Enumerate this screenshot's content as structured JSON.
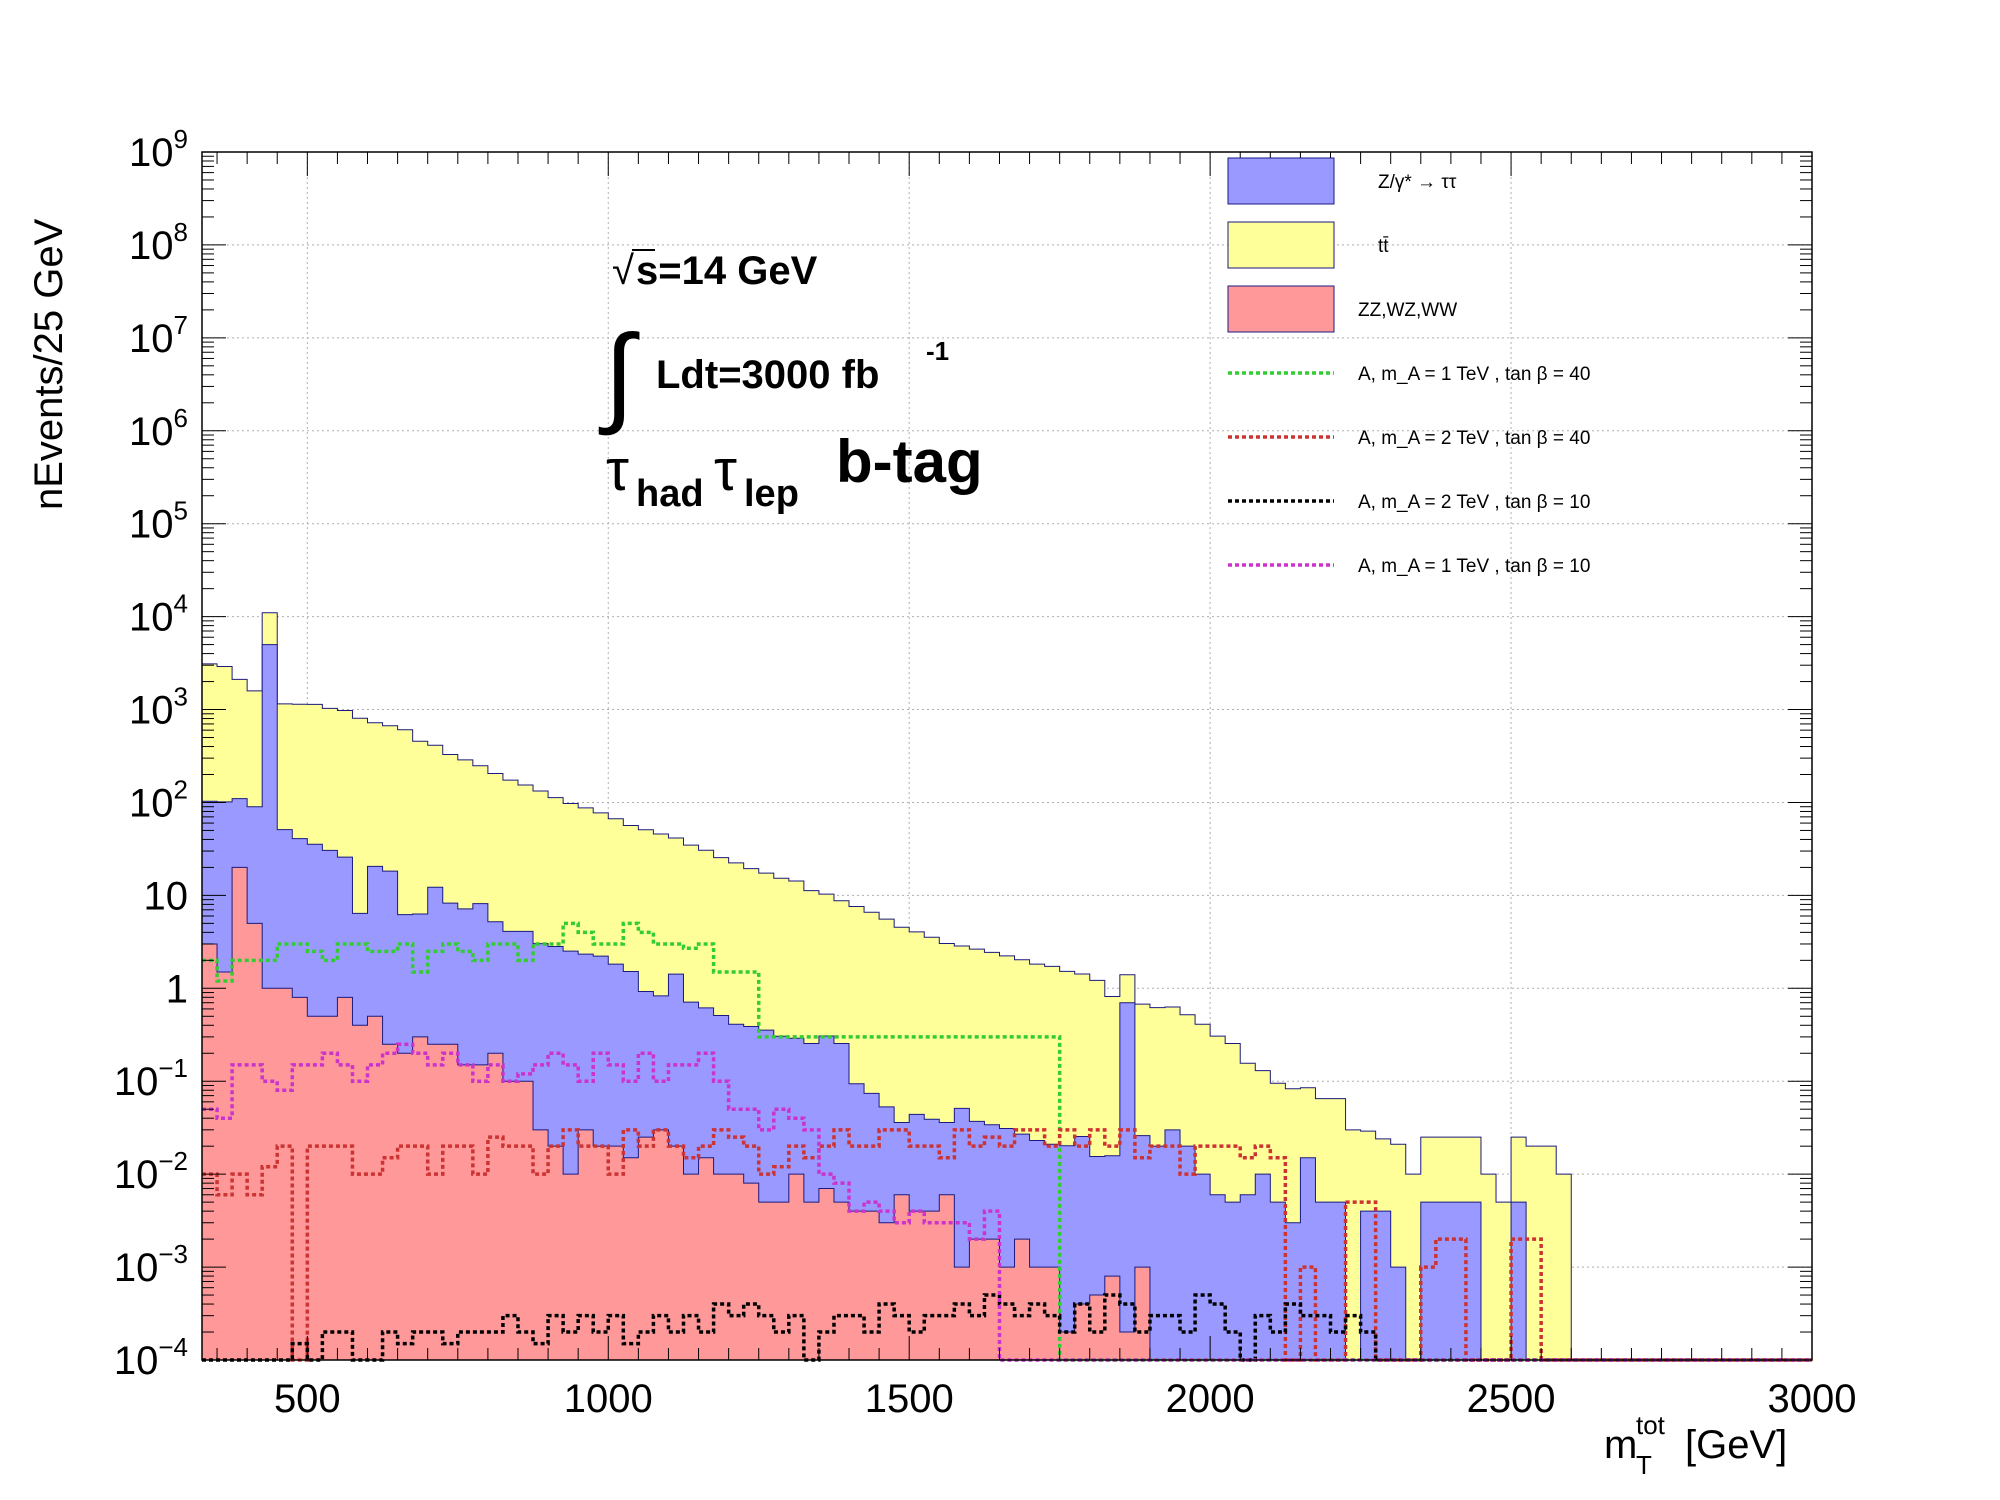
{
  "chart_data": {
    "type": "histogram",
    "ylog": true,
    "xlim": [
      325,
      3000
    ],
    "ylim": [
      0.0001,
      1000000000
    ],
    "bin_width": 25,
    "grid": true,
    "legend_position": "top-right",
    "xlabel": "m_T^tot [GeV]",
    "ylabel": "nEvents/25 GeV",
    "x_ticks": [
      "500",
      "1000",
      "1500",
      "2000",
      "2500",
      "3000"
    ],
    "y_ticks": [
      {
        "text": "10",
        "exp": "9",
        "v": 1000000000.0
      },
      {
        "text": "10",
        "exp": "8",
        "v": 100000000.0
      },
      {
        "text": "10",
        "exp": "7",
        "v": 10000000.0
      },
      {
        "text": "10",
        "exp": "6",
        "v": 1000000.0
      },
      {
        "text": "10",
        "exp": "5",
        "v": 100000.0
      },
      {
        "text": "10",
        "exp": "4",
        "v": 10000.0
      },
      {
        "text": "10",
        "exp": "3",
        "v": 1000.0
      },
      {
        "text": "10",
        "exp": "2",
        "v": 100.0
      },
      {
        "text": "10",
        "exp": "",
        "v": 10
      },
      {
        "text": "1",
        "exp": "",
        "v": 1
      },
      {
        "text": "10",
        "exp": "−1",
        "v": 0.1
      },
      {
        "text": "10",
        "exp": "−2",
        "v": 0.01
      },
      {
        "text": "10",
        "exp": "−3",
        "v": 0.001
      },
      {
        "text": "10",
        "exp": "−4",
        "v": 0.0001
      }
    ],
    "annotations": {
      "energy": "s=14 GeV",
      "lumi": "Ldt=3000 fb",
      "lumi_exp": "-1",
      "tau1": "τ",
      "tau1_sub": "had",
      "tau2": "τ",
      "tau2_sub": "lep",
      "category": "b-tag"
    },
    "stack_series": [
      {
        "name": "ZZ,WZ,WW",
        "color": "#ff9999",
        "x_start": 325,
        "values": [
          3,
          1.5,
          20,
          5,
          1,
          1,
          0.8,
          0.5,
          0.5,
          0.8,
          0.4,
          0.5,
          0.25,
          0.2,
          0.3,
          0.25,
          0.25,
          0.15,
          0.15,
          0.2,
          0.1,
          0.1,
          0.03,
          0.02,
          0.01,
          0.03,
          0.02,
          0.02,
          0.015,
          0.025,
          0.03,
          0.02,
          0.01,
          0.015,
          0.01,
          0.01,
          0.008,
          0.005,
          0.005,
          0.01,
          0.005,
          0.007,
          0.005,
          0.004,
          0.004,
          0.003,
          0.006,
          0.004,
          0.004,
          0.006,
          0.001,
          0.002,
          0.002,
          0.001,
          0.002,
          0.001,
          0.001,
          0.0002,
          0.0004,
          0.0005,
          0.0008,
          0.0002,
          0.001,
          0.0001,
          0.0001,
          0.0001,
          0.0001,
          0.0001,
          0.0001,
          0.0001,
          0.0001,
          0.0001,
          0.0001,
          0.0001,
          0.0001,
          0.0001,
          0.0001,
          0.0001,
          0.0001,
          0.0001,
          0.0001,
          0.0001,
          0.0001,
          0.0001,
          0.0001,
          0.0001,
          0.0001,
          0.0001,
          0.0001,
          0.0001,
          0.0001,
          0.0001,
          0.0001,
          0.0001,
          0.0001,
          0.0001,
          0.0001,
          0.0001,
          0.0001,
          0.0001,
          0.0001,
          0.0001,
          0.0001,
          0.0001,
          0.0001,
          0.0001,
          0.0001
        ]
      },
      {
        "name": "Z/γ* → ττ",
        "color": "#9999ff",
        "x_start": 325,
        "values": [
          100,
          100,
          90,
          85,
          5000,
          50,
          40,
          35,
          30,
          25,
          6,
          20,
          18,
          6,
          6,
          12,
          8,
          7,
          8,
          5,
          4,
          4,
          3,
          2.8,
          2.5,
          2.3,
          2.2,
          1.8,
          1.5,
          0.9,
          0.8,
          1.4,
          0.7,
          0.6,
          0.5,
          0.4,
          0.38,
          0.35,
          0.3,
          0.28,
          0.25,
          0.3,
          0.25,
          0.09,
          0.07,
          0.05,
          0.03,
          0.04,
          0.035,
          0.03,
          0.05,
          0.035,
          0.032,
          0.03,
          0.025,
          0.022,
          0.02,
          0.02,
          0.025,
          0.015,
          0.015,
          0.7,
          0.025,
          0.02,
          0.03,
          0.02,
          0.01,
          0.006,
          0.005,
          0.006,
          0.01,
          0.005,
          0.003,
          0.015,
          0.005,
          0.005,
          0.0001,
          0.004,
          0.004,
          0.001,
          0.0001,
          0.005,
          0.005,
          0.005,
          0.005,
          0.0001,
          0.0001,
          0.005,
          0.0001,
          0.0001,
          0.0001,
          0.0001,
          0.0001,
          0.0001,
          0.0001,
          0.0001,
          0.0001,
          0.0001,
          0.0001,
          0.0001,
          0.0001,
          0.0001,
          0.0001,
          0.0001,
          0.0001,
          0.0001,
          0.0001
        ]
      },
      {
        "name": "tt̄",
        "color": "#ffff99",
        "x_start": 325,
        "values": [
          3000,
          2800,
          2000,
          1500,
          6000,
          1100,
          1100,
          1100,
          1000,
          950,
          800,
          700,
          650,
          600,
          450,
          400,
          320,
          280,
          240,
          200,
          170,
          150,
          130,
          110,
          95,
          85,
          75,
          65,
          55,
          50,
          45,
          40,
          34,
          30,
          25,
          22,
          19,
          17,
          15,
          14,
          11,
          10,
          8.5,
          7.5,
          6.5,
          5.5,
          4.5,
          4,
          3.5,
          3,
          2.8,
          2.6,
          2.4,
          2.2,
          2,
          1.8,
          1.7,
          1.5,
          1.4,
          1.2,
          0.8,
          0.7,
          0.65,
          0.6,
          0.6,
          0.5,
          0.4,
          0.3,
          0.25,
          0.15,
          0.12,
          0.09,
          0.08,
          0.07,
          0.06,
          0.06,
          0.03,
          0.025,
          0.02,
          0.02,
          0.01,
          0.02,
          0.02,
          0.02,
          0.02,
          0.01,
          0.005,
          0.02,
          0.02,
          0.02,
          0.01,
          0.0001,
          0.0001,
          0.0001,
          0.0001,
          0.0001,
          0.0001,
          0.0001,
          0.0001,
          0.0001,
          0.0001,
          0.0001,
          0.0001,
          0.0001,
          0.0001,
          0.0001,
          0.0001
        ]
      }
    ],
    "overlay_series": [
      {
        "name": "A,   m_A = 1   TeV   ,   tan β = 40",
        "color": "#33cc33",
        "x_start": 325,
        "values": [
          2,
          1.2,
          2,
          2,
          2,
          3,
          3,
          2.5,
          2,
          3,
          3,
          2.5,
          2.5,
          3,
          1.5,
          2.5,
          3,
          2.5,
          2,
          3,
          3,
          2,
          3,
          3,
          5,
          4,
          3,
          3,
          5,
          4,
          3,
          3,
          2.7,
          3,
          1.5,
          1.5,
          1.5,
          0.3,
          0.3,
          0.3,
          0.3,
          0.3,
          0.3,
          0.3,
          0.3,
          0.3,
          0.3,
          0.3,
          0.3,
          0.3,
          0.3,
          0.3,
          0.3,
          0.3,
          0.3,
          0.3,
          0.3,
          0.0001,
          0.0001,
          0.0001,
          0.0001,
          0.0001,
          0.0001,
          0.0001,
          0.0001,
          0.0001,
          0.0001,
          0.0001,
          0.0001,
          0.0001,
          0.0001,
          0.0001,
          0.0001,
          0.0001,
          0.0001,
          0.0001,
          0.0001,
          0.0001,
          0.0001,
          0.0001,
          0.0001,
          0.0001,
          0.0001,
          0.0001,
          0.0001,
          0.0001,
          0.0001,
          0.0001,
          0.0001,
          0.0001,
          0.0001,
          0.0001,
          0.0001,
          0.0001,
          0.0001,
          0.0001,
          0.0001,
          0.0001,
          0.0001,
          0.0001,
          0.0001,
          0.0001,
          0.0001,
          0.0001,
          0.0001,
          0.0001,
          0.0001
        ]
      },
      {
        "name": "A,   m_A = 2   TeV   ,   tan β = 40",
        "color": "#cc3333",
        "x_start": 325,
        "values": [
          0.01,
          0.006,
          0.01,
          0.006,
          0.012,
          0.02,
          0.0001,
          0.02,
          0.02,
          0.02,
          0.01,
          0.01,
          0.015,
          0.02,
          0.02,
          0.01,
          0.02,
          0.02,
          0.01,
          0.025,
          0.02,
          0.02,
          0.01,
          0.02,
          0.03,
          0.02,
          0.02,
          0.01,
          0.03,
          0.02,
          0.03,
          0.02,
          0.015,
          0.02,
          0.03,
          0.025,
          0.02,
          0.01,
          0.012,
          0.02,
          0.015,
          0.02,
          0.03,
          0.02,
          0.02,
          0.03,
          0.03,
          0.02,
          0.02,
          0.015,
          0.03,
          0.02,
          0.025,
          0.02,
          0.03,
          0.03,
          0.02,
          0.03,
          0.02,
          0.03,
          0.02,
          0.03,
          0.015,
          0.02,
          0.02,
          0.01,
          0.02,
          0.02,
          0.02,
          0.015,
          0.02,
          0.015,
          0.0001,
          0.001,
          0.0001,
          0.0001,
          0.005,
          0.005,
          0.0001,
          0.0001,
          0.0001,
          0.001,
          0.002,
          0.002,
          0.0001,
          0.0001,
          0.0001,
          0.002,
          0.002,
          0.0001,
          0.0001,
          0.0001,
          0.0001,
          0.0001,
          0.0001,
          0.0001,
          0.0001,
          0.0001,
          0.0001,
          0.0001,
          0.0001,
          0.0001,
          0.0001,
          0.0001,
          0.0001,
          0.0001,
          0.0001
        ]
      },
      {
        "name": "A,   m_A = 2   TeV   ,   tan β = 10",
        "color": "#000000",
        "x_start": 325,
        "values": [
          0.0001,
          0.0001,
          0.0001,
          0.0001,
          0.0001,
          0.0001,
          0.00015,
          0.0001,
          0.0002,
          0.0002,
          0.0001,
          0.0001,
          0.0002,
          0.00015,
          0.0002,
          0.0002,
          0.00015,
          0.0002,
          0.0002,
          0.0002,
          0.0003,
          0.0002,
          0.00015,
          0.0003,
          0.0002,
          0.0003,
          0.0002,
          0.0003,
          0.00015,
          0.0002,
          0.0003,
          0.0002,
          0.0003,
          0.0002,
          0.0004,
          0.0003,
          0.0004,
          0.0003,
          0.0002,
          0.0003,
          0.0001,
          0.0002,
          0.0003,
          0.0003,
          0.0002,
          0.0004,
          0.0003,
          0.0002,
          0.0003,
          0.0003,
          0.0004,
          0.0003,
          0.0005,
          0.0004,
          0.0003,
          0.0004,
          0.0003,
          0.0002,
          0.0004,
          0.0002,
          0.0005,
          0.0004,
          0.0002,
          0.0003,
          0.0003,
          0.0002,
          0.0005,
          0.0004,
          0.0002,
          0.0001,
          0.0003,
          0.0002,
          0.0004,
          0.0003,
          0.0003,
          0.0002,
          0.0003,
          0.0002,
          0.0001,
          0.0001,
          0.0001,
          0.0001,
          0.0001,
          0.0001,
          0.0001,
          0.0001,
          0.0001,
          0.0001,
          0.0001,
          0.0001,
          0.0001,
          0.0001,
          0.0001,
          0.0001,
          0.0001,
          0.0001,
          0.0001,
          0.0001,
          0.0001,
          0.0001,
          0.0001,
          0.0001,
          0.0001,
          0.0001,
          0.0001,
          0.0001,
          0.0001
        ]
      },
      {
        "name": "A,   m_A = 1   TeV   ,   tan β = 10",
        "color": "#cc33cc",
        "x_start": 325,
        "values": [
          0.05,
          0.04,
          0.15,
          0.15,
          0.1,
          0.08,
          0.15,
          0.15,
          0.2,
          0.15,
          0.1,
          0.15,
          0.2,
          0.25,
          0.2,
          0.15,
          0.2,
          0.15,
          0.1,
          0.15,
          0.1,
          0.12,
          0.15,
          0.2,
          0.15,
          0.1,
          0.2,
          0.15,
          0.1,
          0.2,
          0.1,
          0.15,
          0.15,
          0.2,
          0.1,
          0.05,
          0.05,
          0.03,
          0.05,
          0.04,
          0.03,
          0.01,
          0.008,
          0.004,
          0.005,
          0.004,
          0.003,
          0.004,
          0.003,
          0.003,
          0.003,
          0.002,
          0.004,
          0.0001,
          0.0001,
          0.0001,
          0.0001,
          0.0001,
          0.0001,
          0.0001,
          0.0001,
          0.0001,
          0.0001,
          0.0001,
          0.0001,
          0.0001,
          0.0001,
          0.0001,
          0.0001,
          0.0001,
          0.0001,
          0.0001,
          0.0001,
          0.0001,
          0.0001,
          0.0001,
          0.0001,
          0.0001,
          0.0001,
          0.0001,
          0.0001,
          0.0001,
          0.0001,
          0.0001,
          0.0001,
          0.0001,
          0.0001,
          0.0001,
          0.0001,
          0.0001,
          0.0001,
          0.0001,
          0.0001,
          0.0001,
          0.0001,
          0.0001,
          0.0001,
          0.0001,
          0.0001,
          0.0001,
          0.0001,
          0.0001,
          0.0001,
          0.0001,
          0.0001,
          0.0001,
          0.0001
        ]
      }
    ],
    "legend": [
      {
        "label": "Z/γ* → ττ",
        "style": "fill",
        "color": "#9999ff"
      },
      {
        "label": "tt̄",
        "style": "fill",
        "color": "#ffff99"
      },
      {
        "label": "ZZ,WZ,WW",
        "style": "fill",
        "color": "#ff9999"
      },
      {
        "label": "A,   m_A = 1   TeV   ,   tan β = 40",
        "style": "dashed",
        "color": "#33cc33"
      },
      {
        "label": "A,   m_A = 2   TeV   ,   tan β = 40",
        "style": "dashed",
        "color": "#cc3333"
      },
      {
        "label": "A,   m_A = 2   TeV   ,   tan β = 10",
        "style": "dashed",
        "color": "#000000"
      },
      {
        "label": "A,   m_A = 1   TeV   ,   tan β = 10",
        "style": "dashed",
        "color": "#cc33cc"
      }
    ]
  }
}
